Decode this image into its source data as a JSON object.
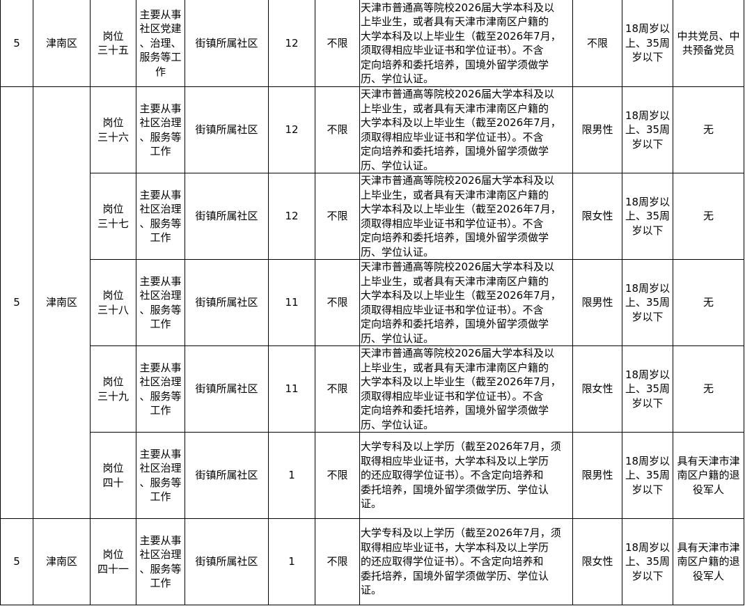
{
  "rows": [
    {
      "no": "5",
      "district": "津南区",
      "post": "岗位\n三十五",
      "duty": "主要从事\n社区党建\n、治理、\n服务等工\n作",
      "unit": "街镇所属社区",
      "count": "12",
      "major": "不限",
      "edu": "天津市普通高等院校2026届大学本科及以\n上毕业生，或者具有天津市津南区户籍的\n大学本科及以上毕业生（截至2026年7月，\n须取得相应毕业证书和学位证书）。不含\n定向培养和委托培养，国境外留学须做学\n历、学位认证。",
      "gender": "不限",
      "age": "18周岁以\n上、35周\n岁以下",
      "other": "中共党员、中\n共预备党员"
    },
    {
      "no": "5",
      "district": "津南区",
      "post": "岗位\n三十六",
      "duty": "主要从事\n社区治理\n、服务等\n工作",
      "unit": "街镇所属社区",
      "count": "12",
      "major": "不限",
      "edu": "天津市普通高等院校2026届大学本科及以\n上毕业生，或者具有天津市津南区户籍的\n大学本科及以上毕业生（截至2026年7月，\n须取得相应毕业证书和学位证书）。不含\n定向培养和委托培养，国境外留学须做学\n历、学位认证。",
      "gender": "限男性",
      "age": "18周岁以\n上、35周\n岁以下",
      "other": "无"
    },
    {
      "post": "岗位\n三十七",
      "duty": "主要从事\n社区治理\n、服务等\n工作",
      "unit": "街镇所属社区",
      "count": "12",
      "major": "不限",
      "edu": "天津市普通高等院校2026届大学本科及以\n上毕业生，或者具有天津市津南区户籍的\n大学本科及以上毕业生（截至2026年7月，\n须取得相应毕业证书和学位证书）。不含\n定向培养和委托培养，国境外留学须做学\n历、学位认证。",
      "gender": "限女性",
      "age": "18周岁以\n上、35周\n岁以下",
      "other": "无"
    },
    {
      "post": "岗位\n三十八",
      "duty": "主要从事\n社区治理\n、服务等\n工作",
      "unit": "街镇所属社区",
      "count": "11",
      "major": "不限",
      "edu": "天津市普通高等院校2026届大学本科及以\n上毕业生，或者具有天津市津南区户籍的\n大学本科及以上毕业生（截至2026年7月，\n须取得相应毕业证书和学位证书）。不含\n定向培养和委托培养，国境外留学须做学\n历、学位认证。",
      "gender": "限男性",
      "age": "18周岁以\n上、35周\n岁以下",
      "other": "无"
    },
    {
      "post": "岗位\n三十九",
      "duty": "主要从事\n社区治理\n、服务等\n工作",
      "unit": "街镇所属社区",
      "count": "11",
      "major": "不限",
      "edu": "天津市普通高等院校2026届大学本科及以\n上毕业生，或者具有天津市津南区户籍的\n大学本科及以上毕业生（截至2026年7月，\n须取得相应毕业证书和学位证书）。不含\n定向培养和委托培养，国境外留学须做学\n历、学位认证。",
      "gender": "限女性",
      "age": "18周岁以\n上、35周\n岁以下",
      "other": "无"
    },
    {
      "post": "岗位\n四十",
      "duty": "主要从事\n社区治理\n、服务等\n工作",
      "unit": "街镇所属社区",
      "count": "1",
      "major": "不限",
      "edu": "大学专科及以上学历（截至2026年7月，须\n取得相应毕业证书，大学本科及以上学历\n的还应取得学位证书）。不含定向培养和\n委托培养，国境外留学须做学历、学位认\n证。",
      "gender": "限男性",
      "age": "18周岁以\n上、35周\n岁以下",
      "other": "具有天津市津\n南区户籍的退\n役军人"
    },
    {
      "no": "5",
      "district": "津南区",
      "post": "岗位\n四十一",
      "duty": "主要从事\n社区治理\n、服务等\n工作",
      "unit": "街镇所属社区",
      "count": "1",
      "major": "不限",
      "edu": "大学专科及以上学历（截至2026年7月，须\n取得相应毕业证书，大学本科及以上学历\n的还应取得学位证书）。不含定向培养和\n委托培养，国境外留学须做学历、学位认\n证。",
      "gender": "限女性",
      "age": "18周岁以\n上、35周\n岁以下",
      "other": "具有天津市津\n南区户籍的退\n役军人"
    }
  ]
}
